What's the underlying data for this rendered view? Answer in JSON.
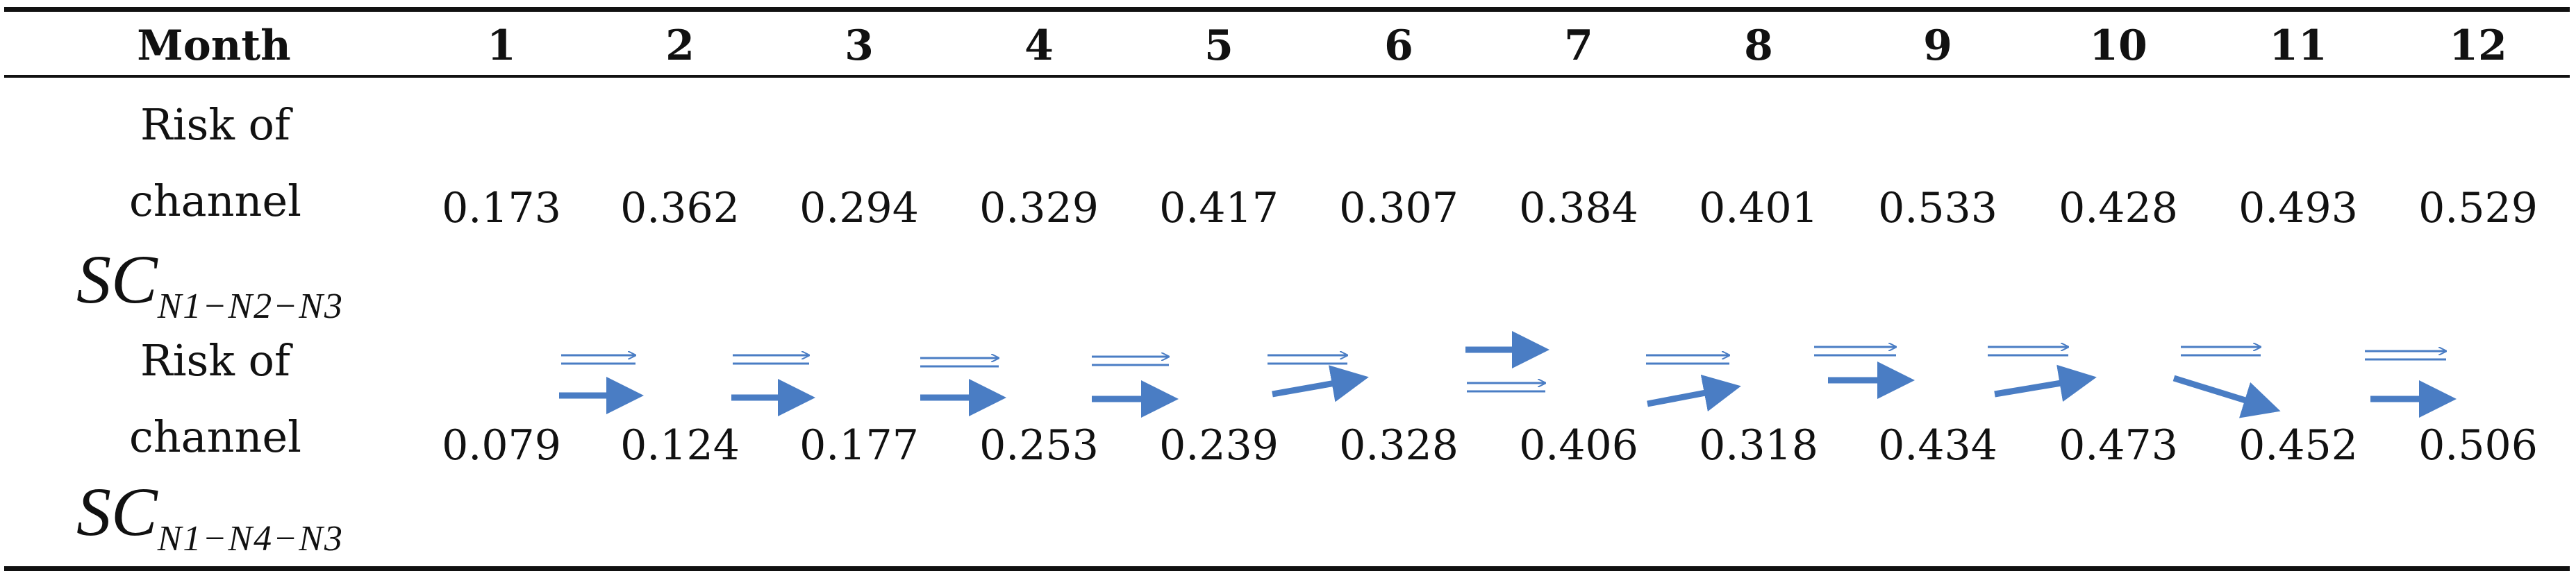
{
  "table": {
    "header_label": "Month",
    "months": [
      "1",
      "2",
      "3",
      "4",
      "5",
      "6",
      "7",
      "8",
      "9",
      "10",
      "11",
      "12"
    ],
    "rows": [
      {
        "label_lines": [
          "Risk of",
          "channel"
        ],
        "math_main": "SC",
        "math_sub": "N1−N2−N3",
        "values": [
          "0.173",
          "0.362",
          "0.294",
          "0.329",
          "0.417",
          "0.307",
          "0.384",
          "0.401",
          "0.533",
          "0.428",
          "0.493",
          "0.529"
        ]
      },
      {
        "label_lines": [
          "Risk of",
          "channel"
        ],
        "math_main": "SC",
        "math_sub": "N1−N4−N3",
        "values": [
          "0.079",
          "0.124",
          "0.177",
          "0.253",
          "0.239",
          "0.328",
          "0.406",
          "0.318",
          "0.434",
          "0.473",
          "0.452",
          "0.506"
        ]
      }
    ],
    "arrow_color": "#4a7dc4"
  }
}
